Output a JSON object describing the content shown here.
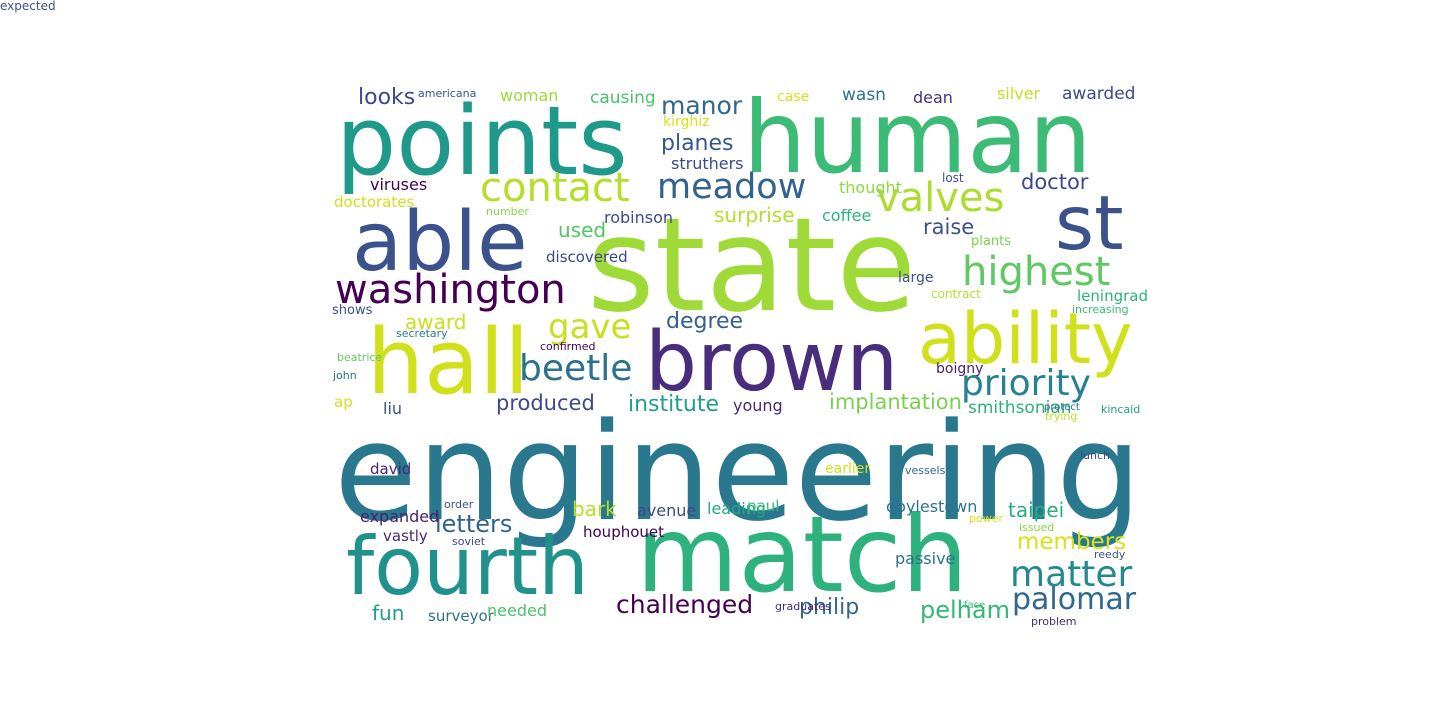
{
  "words": [
    {
      "text": "engineering",
      "color": "#2a788e"
    },
    {
      "text": "state",
      "color": "#a0da39"
    },
    {
      "text": "match",
      "color": "#2db27d"
    },
    {
      "text": "points",
      "color": "#1f9a8a"
    },
    {
      "text": "human",
      "color": "#3bbb75"
    },
    {
      "text": "brown",
      "color": "#472d7b"
    },
    {
      "text": "able",
      "color": "#3b528b"
    },
    {
      "text": "hall",
      "color": "#d0e11c"
    },
    {
      "text": "ability",
      "color": "#d0e11c"
    },
    {
      "text": "fourth",
      "color": "#21918c"
    },
    {
      "text": "st",
      "color": "#3b528b"
    },
    {
      "text": "washington",
      "color": "#440154"
    },
    {
      "text": "contact",
      "color": "#b5de2b"
    },
    {
      "text": "meadow",
      "color": "#33638d"
    },
    {
      "text": "highest",
      "color": "#5ec962"
    },
    {
      "text": "valves",
      "color": "#addc30"
    },
    {
      "text": "gave",
      "color": "#c8e020"
    },
    {
      "text": "beetle",
      "color": "#2c728e"
    },
    {
      "text": "priority",
      "color": "#26828e"
    },
    {
      "text": "matter",
      "color": "#23898e"
    },
    {
      "text": "palomar",
      "color": "#31688e"
    },
    {
      "text": "challenged",
      "color": "#440154"
    },
    {
      "text": "members",
      "color": "#d8e219"
    },
    {
      "text": "manor",
      "color": "#31688e"
    },
    {
      "text": "planes",
      "color": "#38588c"
    },
    {
      "text": "looks",
      "color": "#3e4989"
    },
    {
      "text": "doctor",
      "color": "#3e4989"
    },
    {
      "text": "degree",
      "color": "#355f8d"
    },
    {
      "text": "implantation",
      "color": "#7ad151"
    },
    {
      "text": "produced",
      "color": "#3e4989"
    },
    {
      "text": "institute",
      "color": "#1f9e89"
    },
    {
      "text": "award",
      "color": "#c8e020"
    },
    {
      "text": "raise",
      "color": "#3b528b"
    },
    {
      "text": "surprise",
      "color": "#b5de2b"
    },
    {
      "text": "letters",
      "color": "#33638d"
    },
    {
      "text": "bark",
      "color": "#b5de2b"
    },
    {
      "text": "taipei",
      "color": "#27ad81"
    },
    {
      "text": "philip",
      "color": "#31688e"
    },
    {
      "text": "pelham",
      "color": "#35b779"
    },
    {
      "text": "fun",
      "color": "#1f9e89"
    },
    {
      "text": "used",
      "color": "#52c569"
    },
    {
      "text": "liu",
      "color": "#3b528b"
    },
    {
      "text": "smithsonian",
      "color": "#2db27d"
    },
    {
      "text": "awarded",
      "color": "#3e4989"
    },
    {
      "text": "causing",
      "color": "#4ac16d"
    },
    {
      "text": "woman",
      "color": "#a0da39"
    },
    {
      "text": "wasn",
      "color": "#2c728e"
    },
    {
      "text": "dean",
      "color": "#46327e"
    },
    {
      "text": "silver",
      "color": "#c2df23"
    },
    {
      "text": "case",
      "color": "#d8e219"
    },
    {
      "text": "kirghiz",
      "color": "#d2e21b"
    },
    {
      "text": "struthers",
      "color": "#3e4989"
    },
    {
      "text": "viruses",
      "color": "#440154"
    },
    {
      "text": "doctorates",
      "color": "#d0e11c"
    },
    {
      "text": "thought",
      "color": "#8fd744"
    },
    {
      "text": "lost",
      "color": "#3b528b"
    },
    {
      "text": "number",
      "color": "#86d549"
    },
    {
      "text": "robinson",
      "color": "#3e4989"
    },
    {
      "text": "coffee",
      "color": "#2db27d"
    },
    {
      "text": "plants",
      "color": "#7ad151"
    },
    {
      "text": "discovered",
      "color": "#3e4989"
    },
    {
      "text": "large",
      "color": "#3b528b"
    },
    {
      "text": "contract",
      "color": "#b5de2b"
    },
    {
      "text": "leningrad",
      "color": "#2db27d"
    },
    {
      "text": "shows",
      "color": "#3b528b"
    },
    {
      "text": "increasing",
      "color": "#3bbb75"
    },
    {
      "text": "secretary",
      "color": "#26828e"
    },
    {
      "text": "confirmed",
      "color": "#440154"
    },
    {
      "text": "beatrice",
      "color": "#5ec962"
    },
    {
      "text": "john",
      "color": "#2c728e"
    },
    {
      "text": "boigny",
      "color": "#482173"
    },
    {
      "text": "ap",
      "color": "#d0e11c"
    },
    {
      "text": "young",
      "color": "#482878"
    },
    {
      "text": "protect",
      "color": "#2c728e"
    },
    {
      "text": "kincaid",
      "color": "#1f9e89"
    },
    {
      "text": "trying",
      "color": "#c2df23"
    },
    {
      "text": "david",
      "color": "#482878"
    },
    {
      "text": "earlier",
      "color": "#d0e11c"
    },
    {
      "text": "vessels",
      "color": "#31688e"
    },
    {
      "text": "lunch",
      "color": "#3e4989"
    },
    {
      "text": "order",
      "color": "#3b528b"
    },
    {
      "text": "expanded",
      "color": "#481f70"
    },
    {
      "text": "avenue",
      "color": "#3e4989"
    },
    {
      "text": "leading",
      "color": "#22a884"
    },
    {
      "text": "paul",
      "color": "#35b779"
    },
    {
      "text": "doylestown",
      "color": "#2c728e"
    },
    {
      "text": "power",
      "color": "#d8e219"
    },
    {
      "text": "issued",
      "color": "#86d549"
    },
    {
      "text": "vastly",
      "color": "#482878"
    },
    {
      "text": "soviet",
      "color": "#3e4989"
    },
    {
      "text": "houphouet",
      "color": "#440154"
    },
    {
      "text": "passive",
      "color": "#2c728e"
    },
    {
      "text": "reedy",
      "color": "#3b528b"
    },
    {
      "text": "surveyor",
      "color": "#2c728e"
    },
    {
      "text": "needed",
      "color": "#4ac16d"
    },
    {
      "text": "graduates",
      "color": "#482878"
    },
    {
      "text": "face",
      "color": "#3bbb75"
    },
    {
      "text": "problem",
      "color": "#472d7b"
    },
    {
      "text": "americana",
      "color": "#3b528b"
    },
    {
      "text": "expected",
      "color": "#3b528b"
    }
  ]
}
